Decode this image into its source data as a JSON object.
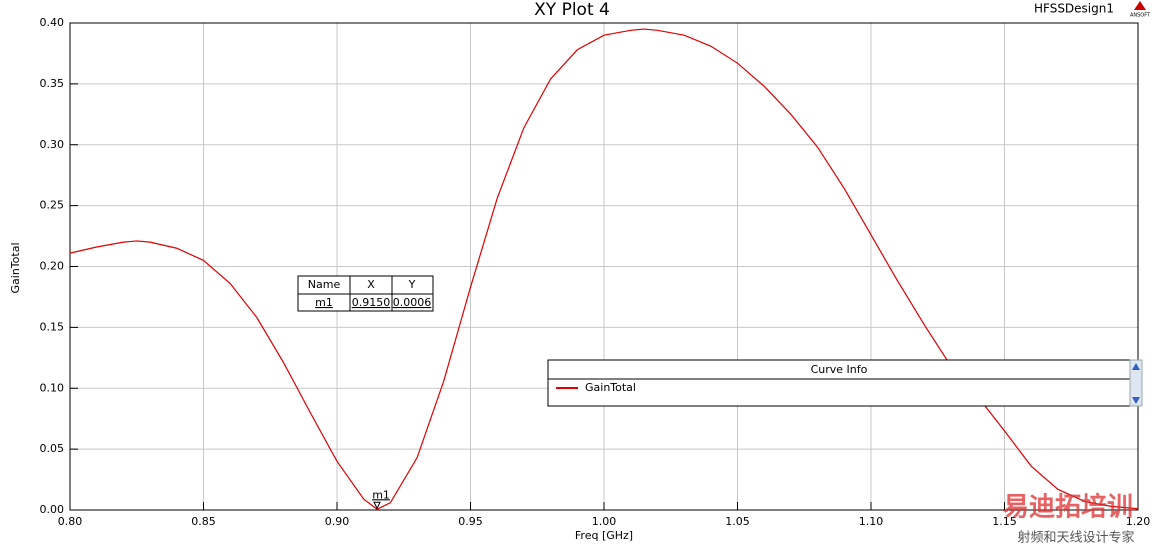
{
  "chart_data": {
    "type": "line",
    "title": "XY Plot 4",
    "design": "HFSSDesign1",
    "logo": "ANSOFT",
    "x_label": "Freq [GHz]",
    "y_label": "GainTotal",
    "xlim": [
      0.8,
      1.2
    ],
    "ylim": [
      0,
      0.4
    ],
    "xticks": [
      {
        "value": 0.8,
        "label": "0.80"
      },
      0.85,
      {
        "value": 0.9,
        "label": "0.90"
      },
      0.95,
      {
        "value": 1.0,
        "label": "1.00"
      },
      1.05,
      {
        "value": 1.1,
        "label": "1.10"
      },
      1.15,
      {
        "value": 1.2,
        "label": "1.20"
      }
    ],
    "yticks": [
      {
        "value": 0,
        "label": "0.00"
      },
      0.05,
      {
        "value": 0.1,
        "label": "0.10"
      },
      0.15,
      {
        "value": 0.2,
        "label": "0.20"
      },
      0.25,
      {
        "value": 0.3,
        "label": "0.30"
      },
      0.35,
      {
        "value": 0.4,
        "label": "0.40"
      }
    ],
    "grid": true,
    "x": [
      0.8,
      0.81,
      0.82,
      0.825,
      0.83,
      0.84,
      0.85,
      0.86,
      0.87,
      0.88,
      0.89,
      0.9,
      0.91,
      0.915,
      0.92,
      0.93,
      0.94,
      0.95,
      0.96,
      0.97,
      0.98,
      0.99,
      1.0,
      1.01,
      1.015,
      1.02,
      1.03,
      1.04,
      1.05,
      1.06,
      1.07,
      1.08,
      1.09,
      1.1,
      1.11,
      1.12,
      1.13,
      1.14,
      1.15,
      1.16,
      1.17,
      1.18,
      1.19,
      1.2
    ],
    "series": [
      {
        "name": "GainTotal",
        "color": "#e00000",
        "values": [
          0.211,
          0.216,
          0.22,
          0.221,
          0.22,
          0.215,
          0.205,
          0.186,
          0.158,
          0.121,
          0.08,
          0.04,
          0.009,
          0.0006,
          0.006,
          0.043,
          0.106,
          0.183,
          0.256,
          0.314,
          0.354,
          0.378,
          0.39,
          0.394,
          0.395,
          0.394,
          0.39,
          0.381,
          0.367,
          0.348,
          0.325,
          0.298,
          0.264,
          0.226,
          0.188,
          0.152,
          0.118,
          0.093,
          0.065,
          0.036,
          0.017,
          0.007,
          0.003,
          0.001
        ]
      }
    ],
    "markers": [
      {
        "name": "m1",
        "x": 0.915,
        "y": 0.0006,
        "value_labels": [
          "0.9150",
          "0.0006"
        ]
      }
    ],
    "marker_table": {
      "columns": [
        "Name",
        "X",
        "Y"
      ]
    },
    "legend_title": "Curve Info",
    "watermark": {
      "title": "易迪拓培训",
      "subtitle": "射频和天线设计专家"
    }
  }
}
